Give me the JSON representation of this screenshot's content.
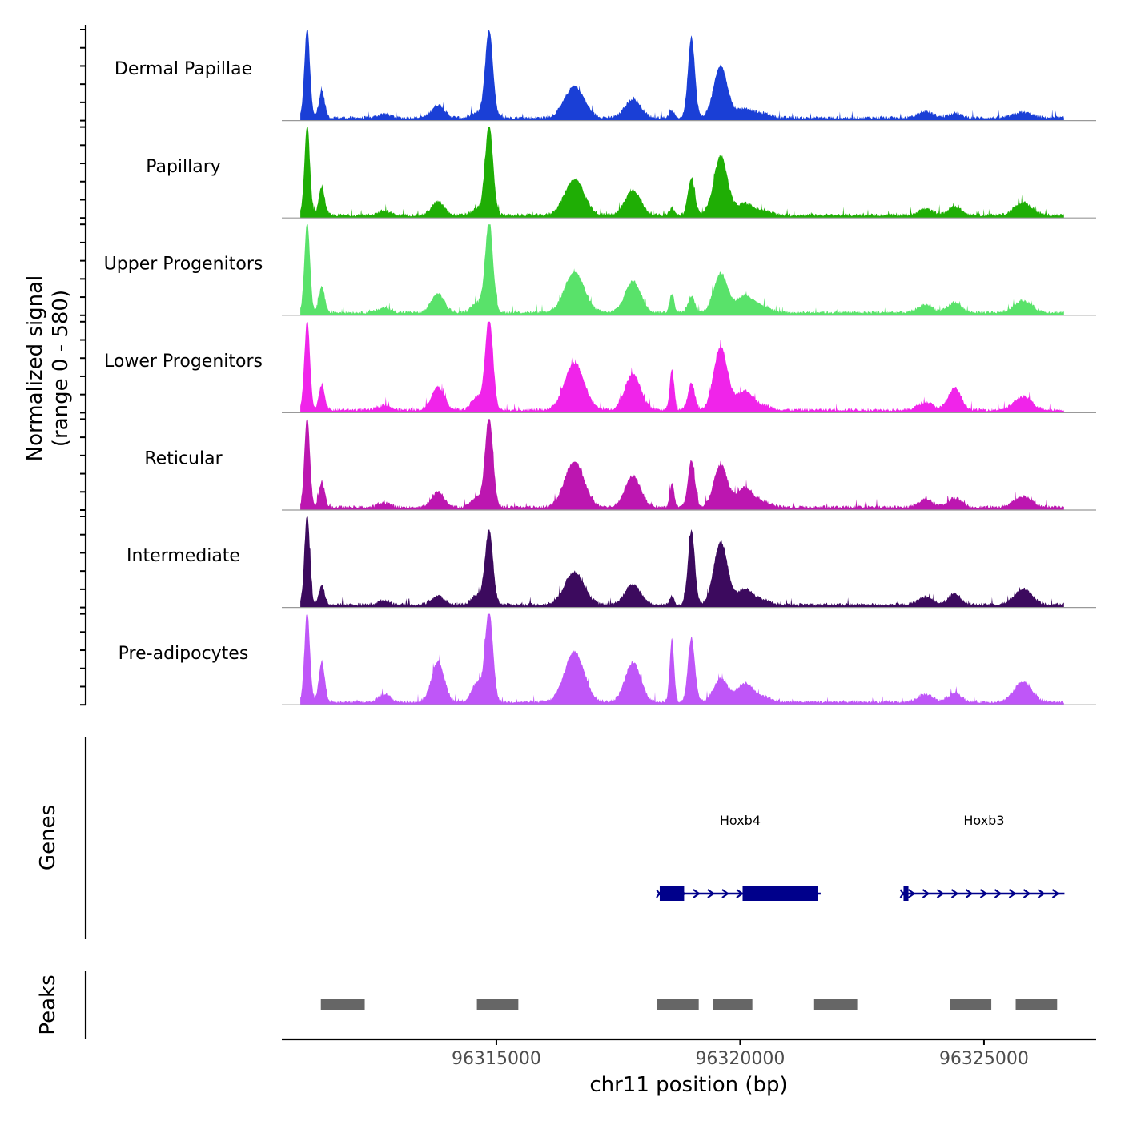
{
  "chart_data": {
    "type": "area",
    "title": "",
    "chromosome": "chr11",
    "xlabel": "chr11 position (bp)",
    "xlim": [
      96310600,
      96327300
    ],
    "x_ticks": [
      96315000,
      96320000,
      96325000
    ],
    "x_tick_labels": [
      "96315000",
      "96320000",
      "96325000"
    ],
    "signal_ylabel": "Normalized signal",
    "signal_range_label": "(range 0 - 580)",
    "ylim": [
      0,
      580
    ],
    "genes_label": "Genes",
    "peaks_label": "Peaks",
    "peak_x": [
      96311400,
      96311700,
      96314800,
      96317900,
      96318600,
      96319500,
      96319900,
      96321900,
      96324200,
      96325800
    ],
    "series": [
      {
        "name": "Dermal Papillae",
        "color": "#1a3fd6",
        "values": [
          40,
          580,
          170,
          25,
          80,
          30,
          560,
          200,
          120,
          45,
          520,
          330,
          60,
          25,
          40,
          30,
          35
        ]
      },
      {
        "name": "Papillary",
        "color": "#1fae05",
        "values": [
          85,
          580,
          180,
          28,
          85,
          40,
          580,
          230,
          160,
          50,
          240,
          380,
          75,
          25,
          40,
          55,
          80
        ]
      },
      {
        "name": "Upper Progenitors",
        "color": "#59e26a",
        "values": [
          55,
          580,
          165,
          30,
          120,
          60,
          580,
          260,
          200,
          120,
          100,
          250,
          110,
          35,
          50,
          65,
          75
        ]
      },
      {
        "name": "Lower Progenitors",
        "color": "#f024ea",
        "values": [
          60,
          580,
          160,
          30,
          150,
          80,
          580,
          300,
          230,
          260,
          170,
          400,
          120,
          25,
          50,
          140,
          85
        ]
      },
      {
        "name": "Reticular",
        "color": "#bc16b0",
        "values": [
          80,
          580,
          160,
          30,
          100,
          65,
          580,
          290,
          200,
          155,
          300,
          270,
          125,
          30,
          50,
          60,
          70
        ]
      },
      {
        "name": "Intermediate",
        "color": "#3c0a5e",
        "values": [
          70,
          580,
          120,
          28,
          55,
          60,
          480,
          210,
          130,
          55,
          470,
          400,
          100,
          25,
          50,
          70,
          100
        ]
      },
      {
        "name": "Pre-adipocytes",
        "color": "#bf56f8",
        "values": [
          150,
          580,
          260,
          50,
          260,
          120,
          580,
          320,
          250,
          400,
          410,
          150,
          120,
          30,
          50,
          60,
          130
        ]
      }
    ],
    "genes": [
      {
        "name": "Hoxb4",
        "start": 96318350,
        "end": 96321650,
        "strand": "+",
        "exons": [
          [
            96318350,
            96318850
          ],
          [
            96320050,
            96321600
          ]
        ]
      },
      {
        "name": "Hoxb3",
        "start": 96323350,
        "end": 96326650,
        "strand": "+",
        "exons": [
          [
            96323350,
            96323450
          ]
        ]
      }
    ],
    "peaks": [
      {
        "start": 96311400,
        "end": 96312300
      },
      {
        "start": 96314600,
        "end": 96315450
      },
      {
        "start": 96318300,
        "end": 96319150
      },
      {
        "start": 96319450,
        "end": 96320250
      },
      {
        "start": 96321500,
        "end": 96322400
      },
      {
        "start": 96324300,
        "end": 96325150
      },
      {
        "start": 96325650,
        "end": 96326500
      }
    ]
  },
  "colors": {
    "gene": "#00008b",
    "peak": "#666666",
    "axis": "#000000",
    "baseline": "#999999",
    "tick_label": "#4d4d4d"
  }
}
